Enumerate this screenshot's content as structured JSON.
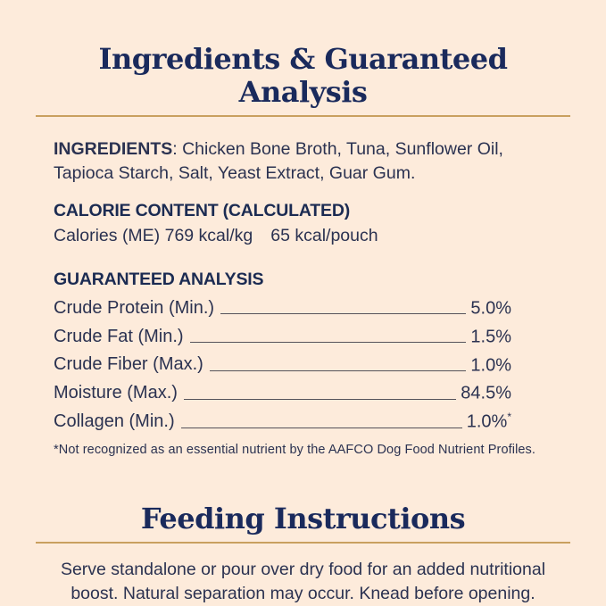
{
  "colors": {
    "background": "#FDEBDB",
    "title_navy": "#1A2A5C",
    "body_navy": "#2B3251",
    "gold_rule": "#C9A05F",
    "leader_line": "#55525A"
  },
  "ingredients_section": {
    "title": "Ingredients & Guaranteed Analysis",
    "ingredients_label": "INGREDIENTS",
    "ingredients_text": ": Chicken Bone Broth, Tuna, Sunflower Oil, Tapioca Starch, Salt, Yeast Extract, Guar Gum.",
    "calorie_heading": "CALORIE CONTENT (CALCULATED)",
    "calorie_line_left": "Calories (ME) 769 kcal/kg",
    "calorie_line_right": "65 kcal/pouch",
    "analysis_heading": "GUARANTEED ANALYSIS",
    "analysis_rows": [
      {
        "label": "Crude Protein (Min.)",
        "value": "5.0%",
        "marker": ""
      },
      {
        "label": "Crude Fat (Min.)",
        "value": "1.5%",
        "marker": ""
      },
      {
        "label": "Crude Fiber (Max.)",
        "value": "1.0%",
        "marker": ""
      },
      {
        "label": "Moisture (Max.)",
        "value": "84.5%",
        "marker": ""
      },
      {
        "label": "Collagen (Min.)",
        "value": "1.0%",
        "marker": "*"
      }
    ],
    "footnote": "*Not recognized as an essential nutrient by the AAFCO Dog Food Nutrient Profiles."
  },
  "feeding_section": {
    "title": "Feeding Instructions",
    "body": "Serve standalone or pour over dry food for an added nutritional boost. Natural separation may occur. Knead before opening."
  }
}
